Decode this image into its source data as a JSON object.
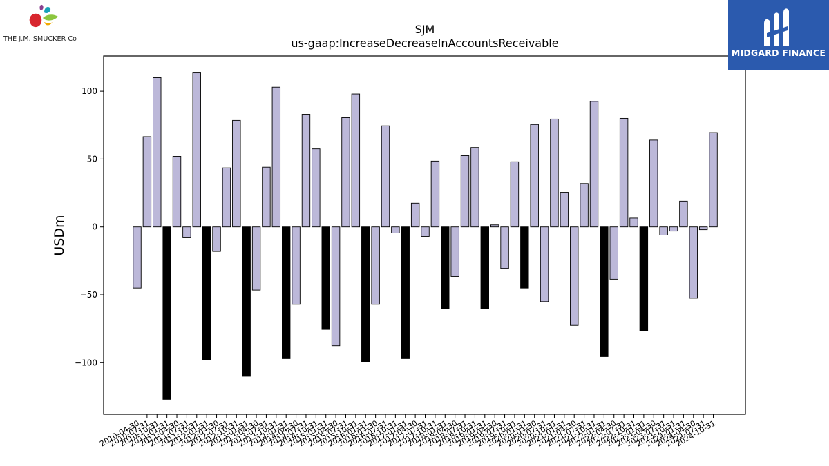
{
  "logos": {
    "company": "THE J.M. SMUCKER Co",
    "brand": "MIDGARD FINANCE"
  },
  "colors": {
    "positive_bar": "#bcb8d9",
    "negative_q4_bar": "#000000",
    "bar_edge": "#000000",
    "brand_blue": "#2b5aae"
  },
  "chart_data": {
    "type": "bar",
    "title": "SJM",
    "subtitle": "us-gaap:IncreaseDecreaseInAccountsReceivable",
    "xlabel": "",
    "ylabel": "USDm",
    "ylim": [
      -138,
      126
    ],
    "yticks": [
      -100,
      -50,
      0,
      50,
      100
    ],
    "ytick_labels": [
      "−100",
      "−50",
      "0",
      "50",
      "100"
    ],
    "grid": false,
    "legend": "none",
    "categories": [
      "2010-04-30",
      "2010-07-31",
      "2010-10-31",
      "2011-01-31",
      "2011-04-30",
      "2011-07-31",
      "2011-10-31",
      "2012-01-31",
      "2012-04-30",
      "2012-07-31",
      "2012-10-31",
      "2013-01-31",
      "2013-04-30",
      "2013-07-31",
      "2013-10-31",
      "2014-01-31",
      "2014-04-30",
      "2014-07-31",
      "2014-10-31",
      "2015-01-31",
      "2015-04-30",
      "2015-07-31",
      "2015-10-31",
      "2016-01-31",
      "2016-04-30",
      "2016-07-31",
      "2016-10-31",
      "2017-01-31",
      "2017-04-30",
      "2017-07-31",
      "2017-10-31",
      "2018-01-31",
      "2018-04-30",
      "2018-07-31",
      "2018-10-31",
      "2019-01-31",
      "2019-04-30",
      "2019-07-31",
      "2019-10-31",
      "2020-01-31",
      "2020-04-30",
      "2020-07-31",
      "2020-10-31",
      "2021-01-31",
      "2021-04-30",
      "2021-07-31",
      "2021-10-31",
      "2022-01-31",
      "2022-04-30",
      "2022-07-31",
      "2022-10-31",
      "2023-01-31",
      "2023-04-30",
      "2023-07-31",
      "2023-10-31",
      "2024-01-31",
      "2024-04-30",
      "2024-07-31",
      "2024-10-31"
    ],
    "values": [
      -45,
      66.5,
      110,
      -127,
      52,
      -8,
      113.5,
      -98,
      -18,
      43.5,
      78.5,
      -110,
      -46.5,
      44,
      103,
      -97,
      -57,
      83,
      57.5,
      -75.5,
      -87.5,
      80.5,
      98,
      -99.5,
      -57,
      74.5,
      -4.5,
      -97,
      17.5,
      -7,
      48.5,
      -60,
      -36.5,
      52.5,
      58.5,
      -60,
      1.5,
      -30.5,
      48,
      -45,
      75.5,
      -55,
      79.5,
      25.5,
      -72.5,
      32,
      92.5,
      -95.5,
      -38.5,
      80,
      6.5,
      -76.5,
      64,
      -6,
      -3,
      19,
      -52.5,
      -2,
      69.5
    ]
  }
}
